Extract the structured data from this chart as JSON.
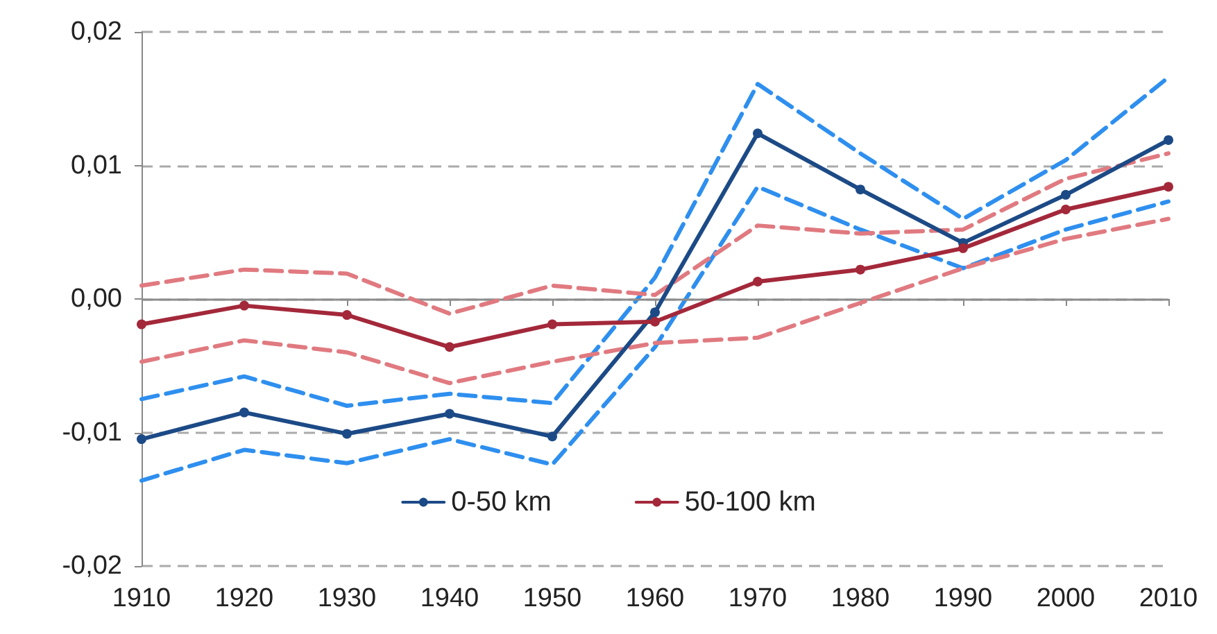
{
  "chart_data": {
    "type": "line",
    "x": [
      1910,
      1920,
      1930,
      1940,
      1950,
      1960,
      1970,
      1980,
      1990,
      2000,
      2010
    ],
    "series": [
      {
        "color": "#2e8fef",
        "line_style": "dashed",
        "marker": "none",
        "values": [
          -0.0075,
          -0.0058,
          -0.008,
          -0.0071,
          -0.0078,
          0.0016,
          0.0161,
          0.0109,
          0.006,
          0.0104,
          0.0166
        ]
      },
      {
        "color": "#2e8fef",
        "line_style": "dashed",
        "marker": "none",
        "values": [
          -0.0136,
          -0.0113,
          -0.0123,
          -0.0105,
          -0.0124,
          -0.0036,
          0.0084,
          0.0052,
          0.0023,
          0.0052,
          0.0073
        ]
      },
      {
        "color": "#e07a80",
        "line_style": "dashed",
        "marker": "none",
        "values": [
          0.001,
          0.0022,
          0.0019,
          -0.0011,
          0.001,
          0.0003,
          0.0055,
          0.0049,
          0.0052,
          0.009,
          0.0109
        ]
      },
      {
        "color": "#e07a80",
        "line_style": "dashed",
        "marker": "none",
        "values": [
          -0.0047,
          -0.0031,
          -0.004,
          -0.0063,
          -0.0047,
          -0.0033,
          -0.0029,
          -0.0003,
          0.0023,
          0.0045,
          0.006
        ]
      },
      {
        "name": "0-50 km",
        "color": "#1c4a86",
        "line_style": "solid",
        "marker": "circle",
        "values": [
          -0.0105,
          -0.0085,
          -0.0101,
          -0.0086,
          -0.0103,
          -0.001,
          0.0124,
          0.0082,
          0.0042,
          0.0078,
          0.0119
        ]
      },
      {
        "name": "50-100 km",
        "color": "#a3283a",
        "line_style": "solid",
        "marker": "circle",
        "values": [
          -0.0019,
          -0.0005,
          -0.0012,
          -0.0036,
          -0.0019,
          -0.0017,
          0.0013,
          0.0022,
          0.0038,
          0.0067,
          0.0084
        ]
      }
    ],
    "xlim": [
      1910,
      2010
    ],
    "xticks": [
      1910,
      1920,
      1930,
      1940,
      1950,
      1960,
      1970,
      1980,
      1990,
      2000,
      2010
    ],
    "ylim": [
      -0.02,
      0.02
    ],
    "yticks": [
      {
        "value": -0.02,
        "label": "-0,02"
      },
      {
        "value": -0.01,
        "label": "-0,01"
      },
      {
        "value": 0,
        "label": "0,00"
      },
      {
        "value": 0.01,
        "label": "0,01"
      },
      {
        "value": 0.02,
        "label": "0,02"
      }
    ],
    "ref_lines": [
      {
        "axis": "y",
        "value": 0,
        "color": "#8c8c8c",
        "line_style": "solid"
      }
    ],
    "grid": "y",
    "legend": "bottom"
  }
}
